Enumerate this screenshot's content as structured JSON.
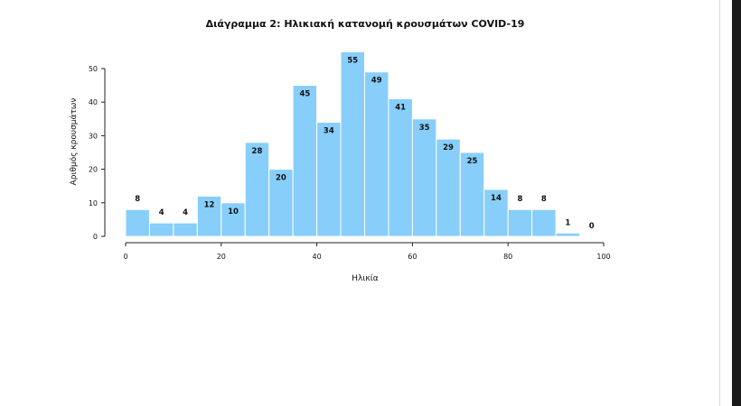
{
  "chart_data": {
    "type": "bar",
    "title": "Διάγραμμα 2: Ηλικιακή κατανομή κρουσμάτων COVID-19",
    "xlabel": "Ηλικία",
    "ylabel": "Αριθμός κρουσμάτων",
    "bin_width": 5,
    "bins": [
      {
        "start": 0,
        "end": 5,
        "value": 8
      },
      {
        "start": 5,
        "end": 10,
        "value": 4
      },
      {
        "start": 10,
        "end": 15,
        "value": 4
      },
      {
        "start": 15,
        "end": 20,
        "value": 12
      },
      {
        "start": 20,
        "end": 25,
        "value": 10
      },
      {
        "start": 25,
        "end": 30,
        "value": 28
      },
      {
        "start": 30,
        "end": 35,
        "value": 20
      },
      {
        "start": 35,
        "end": 40,
        "value": 45
      },
      {
        "start": 40,
        "end": 45,
        "value": 34
      },
      {
        "start": 45,
        "end": 50,
        "value": 55
      },
      {
        "start": 50,
        "end": 55,
        "value": 49
      },
      {
        "start": 55,
        "end": 60,
        "value": 41
      },
      {
        "start": 60,
        "end": 65,
        "value": 35
      },
      {
        "start": 65,
        "end": 70,
        "value": 29
      },
      {
        "start": 70,
        "end": 75,
        "value": 25
      },
      {
        "start": 75,
        "end": 80,
        "value": 14
      },
      {
        "start": 80,
        "end": 85,
        "value": 8
      },
      {
        "start": 85,
        "end": 90,
        "value": 8
      },
      {
        "start": 90,
        "end": 95,
        "value": 1
      },
      {
        "start": 95,
        "end": 100,
        "value": 0
      }
    ],
    "xlim": [
      0,
      100
    ],
    "ylim": [
      0,
      55
    ],
    "x_ticks": [
      0,
      20,
      40,
      60,
      80,
      100
    ],
    "y_ticks": [
      0,
      10,
      20,
      30,
      40,
      50
    ],
    "grid": false,
    "legend": "none",
    "bar_color": "#87cefa",
    "bar_edge_color": "#ffffff"
  }
}
